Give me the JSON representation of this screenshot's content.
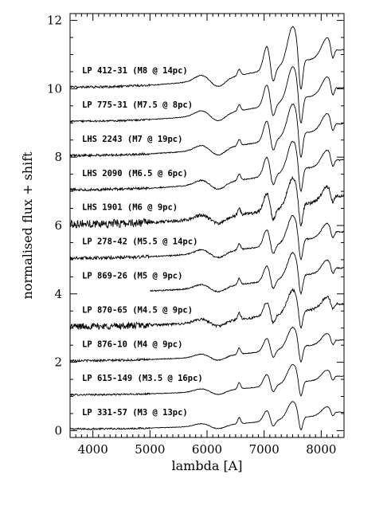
{
  "chart_data": {
    "type": "line",
    "xlabel": "lambda [A]",
    "ylabel": "normalised flux + shift",
    "xlim": [
      3600,
      8400
    ],
    "ylim": [
      -0.2,
      12.2
    ],
    "x_ticks": [
      4000,
      5000,
      6000,
      7000,
      8000
    ],
    "y_ticks": [
      0,
      2,
      4,
      6,
      8,
      10,
      12
    ],
    "grid": false,
    "features_A": [
      6563,
      7050,
      7600,
      8200
    ],
    "series": [
      {
        "name": "LP 331-57 (M3 @ 13pc)",
        "offset": 0.0,
        "noise": 0.03,
        "amp": 0.9,
        "start": 3600
      },
      {
        "name": "LP 615-149 (M3.5 @ 16pc)",
        "offset": 1.0,
        "noise": 0.03,
        "amp": 1.0,
        "start": 3600
      },
      {
        "name": "LP 876-10 (M4 @ 9pc)",
        "offset": 2.0,
        "noise": 0.04,
        "amp": 1.1,
        "start": 3600
      },
      {
        "name": "LP 870-65 (M4.5 @ 9pc)",
        "offset": 3.0,
        "noise": 0.12,
        "amp": 1.2,
        "start": 3600
      },
      {
        "name": "LP 869-26 (M5 @ 9pc)",
        "offset": 4.0,
        "noise": 0.06,
        "amp": 1.3,
        "start": 5000
      },
      {
        "name": "LP 278-42 (M5.5 @ 14pc)",
        "offset": 5.0,
        "noise": 0.06,
        "amp": 1.4,
        "start": 3600
      },
      {
        "name": "LHS 1901 (M6 @ 9pc)",
        "offset": 6.0,
        "noise": 0.15,
        "amp": 1.5,
        "start": 3600
      },
      {
        "name": "LHS 2090 (M6.5 @ 6pc)",
        "offset": 7.0,
        "noise": 0.05,
        "amp": 1.6,
        "start": 3600
      },
      {
        "name": "LHS 2243 (M7 @ 19pc)",
        "offset": 8.0,
        "noise": 0.04,
        "amp": 1.7,
        "start": 3600
      },
      {
        "name": "LP 775-31 (M7.5 @ 8pc)",
        "offset": 9.0,
        "noise": 0.03,
        "amp": 1.8,
        "start": 3600
      },
      {
        "name": "LP 412-31 (M8 @ 14pc)",
        "offset": 10.0,
        "noise": 0.04,
        "amp": 2.0,
        "start": 3600
      }
    ]
  }
}
